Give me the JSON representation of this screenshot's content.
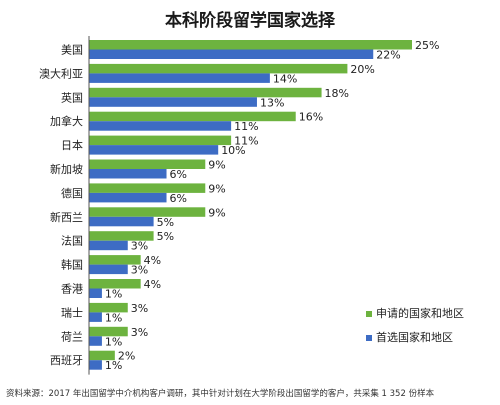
{
  "title": "本科阶段留学国家选择",
  "source": "资料来源：2017 年出国留学中介机构客户调研，其中针对计划在大学阶段出国留学的客户，共采集 1 352 份样本",
  "colors": {
    "applied": "#6db33f",
    "preferred": "#3d6cc4",
    "axis": "#555555"
  },
  "chart_data": {
    "type": "bar",
    "orientation": "horizontal",
    "categories": [
      "美国",
      "澳大利亚",
      "英国",
      "加拿大",
      "日本",
      "新加坡",
      "德国",
      "新西兰",
      "法国",
      "韩国",
      "香港",
      "瑞士",
      "荷兰",
      "西班牙"
    ],
    "series": [
      {
        "name": "申请的国家和地区",
        "values": [
          25,
          20,
          18,
          16,
          11,
          9,
          9,
          9,
          5,
          4,
          4,
          3,
          3,
          2
        ],
        "labels": [
          "25%",
          "20%",
          "18%",
          "16%",
          "11%",
          "9%",
          "9%",
          "9%",
          "5%",
          "4%",
          "4%",
          "3%",
          "3%",
          "2%"
        ]
      },
      {
        "name": "首选国家和地区",
        "values": [
          22,
          14,
          13,
          11,
          10,
          6,
          6,
          5,
          3,
          3,
          1,
          1,
          1,
          1
        ],
        "labels": [
          "22%",
          "14%",
          "13%",
          "11%",
          "10%",
          "6%",
          "6%",
          "5%",
          "3%",
          "3%",
          "1%",
          "1%",
          "1%",
          "1%"
        ]
      }
    ],
    "xlim": [
      0,
      25
    ],
    "grid": false,
    "legend_position": "bottom-right"
  }
}
